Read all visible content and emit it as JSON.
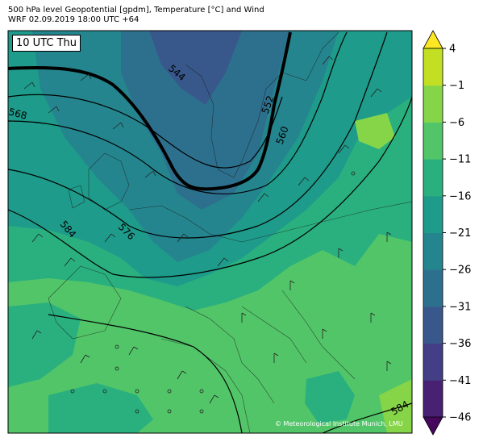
{
  "header": {
    "title_line1": "500 hPa level Geopotential [gpdm], Temperature [°C] and Wind",
    "title_line2": "WRF 02.09.2019 18:00 UTC +64"
  },
  "map": {
    "time_label": "10 UTC Thu",
    "copyright": "© Meteorological Institute Munich, LMU",
    "contour_labels": [
      "544",
      "552",
      "560",
      "568",
      "576",
      "584",
      "584"
    ]
  },
  "colorbar": {
    "ticks": [
      "4",
      "−1",
      "−6",
      "−11",
      "−16",
      "−21",
      "−26",
      "−31",
      "−36",
      "−41",
      "−46"
    ],
    "colors": [
      "#46085c",
      "#482173",
      "#433e85",
      "#38588c",
      "#2d708e",
      "#25858e",
      "#1e9b8a",
      "#2ab07f",
      "#52c569",
      "#86d549",
      "#c2df23",
      "#fde725"
    ]
  }
}
